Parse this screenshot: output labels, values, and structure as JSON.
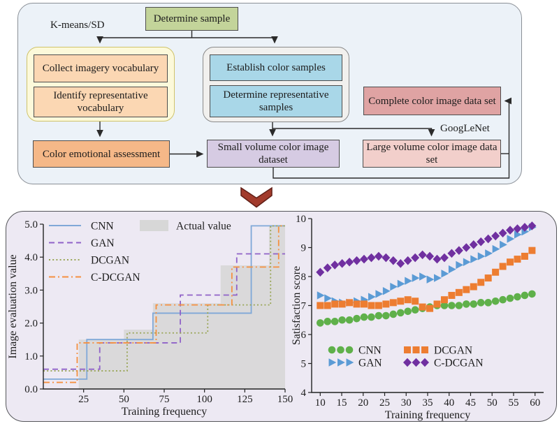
{
  "figure": {
    "flowchart": {
      "kmeans_label": "K-means/SD",
      "googlenet_label": "GoogLeNet",
      "nodes": {
        "determine_sample": "Determine sample",
        "collect_imagery": "Collect imagery vocabulary",
        "identify_representative": "Identify representative vocabulary",
        "establish_color": "Establish color samples",
        "determine_representative": "Determine representative samples",
        "complete_dataset": "Complete color image data set",
        "color_emotional": "Color emotional assessment",
        "small_volume": "Small volume color image dataset",
        "large_volume": "Large volume color image data set"
      },
      "colors": {
        "determine_sample": "#c3d49a",
        "group_yellow": "#fcf9da",
        "group_gray": "#f1f0ee",
        "peach": "#fbd7b3",
        "blue": "#a9d7e8",
        "complete": "#dfa3a3",
        "emotional": "#f5b888",
        "small": "#d6cbe3",
        "large": "#f2cfcb",
        "panel_top": "#ecf2f8",
        "panel_bottom": "#ede9f3",
        "chevron": "#a23b2c"
      }
    }
  },
  "chart_data": [
    {
      "id": "image-evaluation",
      "type": "line",
      "subtype": "step",
      "xlabel": "Training frequency",
      "ylabel": "Image evaluation value",
      "xlim": [
        0,
        150
      ],
      "ylim": [
        0,
        5.0
      ],
      "xticks": [
        25,
        50,
        75,
        100,
        125,
        150
      ],
      "yticks": [
        "0.0",
        "1.0",
        "2.0",
        "3.0",
        "4.0",
        "5.0"
      ],
      "grid": false,
      "legend_position": "inside top-left",
      "actual_area": {
        "label": "Actual value",
        "color": "#d7d7d7",
        "steps": [
          [
            0,
            0
          ],
          [
            22,
            1.5
          ],
          [
            50,
            1.8
          ],
          [
            68,
            2.6
          ],
          [
            110,
            3.75
          ],
          [
            140,
            4.95
          ],
          [
            150,
            4.95
          ]
        ]
      },
      "series": [
        {
          "name": "CNN",
          "color": "#7fa8d8",
          "dash": "solid",
          "steps": [
            [
              0,
              0.3
            ],
            [
              27,
              1.5
            ],
            [
              68,
              2.3
            ],
            [
              129,
              4.95
            ],
            [
              150,
              4.95
            ]
          ]
        },
        {
          "name": "GAN",
          "color": "#8f62c8",
          "dash": "dashed",
          "steps": [
            [
              0,
              0.6
            ],
            [
              35,
              1.4
            ],
            [
              85,
              2.85
            ],
            [
              120,
              4.1
            ],
            [
              150,
              4.1
            ]
          ]
        },
        {
          "name": "DCGAN",
          "color": "#98a554",
          "dash": "dotted",
          "steps": [
            [
              0,
              0.55
            ],
            [
              52,
              1.7
            ],
            [
              102,
              2.55
            ],
            [
              141,
              4.95
            ],
            [
              150,
              4.95
            ]
          ]
        },
        {
          "name": "C-DCGAN",
          "color": "#f59040",
          "dash": "dashdot",
          "steps": [
            [
              0,
              0.2
            ],
            [
              21,
              1.4
            ],
            [
              70,
              2.55
            ],
            [
              117,
              3.7
            ],
            [
              146,
              4.95
            ],
            [
              150,
              4.95
            ]
          ]
        }
      ]
    },
    {
      "id": "satisfaction",
      "type": "scatter",
      "xlabel": "Training frequency",
      "ylabel": "Satisfaction score",
      "xlim": [
        8,
        62
      ],
      "ylim": [
        4,
        10
      ],
      "xticks": [
        10,
        15,
        20,
        25,
        30,
        35,
        40,
        45,
        50,
        55,
        60
      ],
      "yticks": [
        4,
        5,
        6,
        7,
        8,
        9,
        10
      ],
      "grid": false,
      "legend_position": "inside bottom-left",
      "x": [
        10,
        11.7,
        13.4,
        15.1,
        16.8,
        18.5,
        20.2,
        21.9,
        23.6,
        25.3,
        27,
        28.7,
        30.4,
        32.1,
        33.8,
        35.5,
        37.2,
        38.9,
        40.6,
        42.3,
        44,
        45.7,
        47.4,
        49.1,
        50.8,
        52.5,
        54.2,
        55.9,
        57.6,
        59.3
      ],
      "series": [
        {
          "name": "CNN",
          "marker": "circle",
          "color": "#5fb04a",
          "y": [
            6.4,
            6.45,
            6.45,
            6.5,
            6.5,
            6.55,
            6.6,
            6.6,
            6.65,
            6.65,
            6.7,
            6.75,
            6.8,
            6.85,
            6.9,
            6.95,
            7.0,
            7.0,
            7.0,
            7.0,
            7.05,
            7.05,
            7.1,
            7.1,
            7.15,
            7.2,
            7.25,
            7.3,
            7.35,
            7.4
          ]
        },
        {
          "name": "GAN",
          "marker": "triangle",
          "color": "#5b9bd5",
          "y": [
            7.35,
            7.25,
            7.15,
            7.1,
            7.1,
            7.15,
            7.2,
            7.3,
            7.4,
            7.5,
            7.65,
            7.75,
            7.85,
            7.95,
            8.0,
            7.9,
            7.95,
            8.1,
            8.25,
            8.4,
            8.5,
            8.6,
            8.7,
            8.8,
            8.95,
            9.1,
            9.3,
            9.45,
            9.55,
            9.7
          ]
        },
        {
          "name": "DCGAN",
          "marker": "square",
          "color": "#ed7d31",
          "y": [
            7.0,
            7.0,
            7.05,
            7.05,
            7.1,
            7.05,
            7.05,
            7.0,
            7.0,
            7.05,
            7.1,
            7.15,
            7.2,
            7.15,
            6.95,
            6.9,
            7.05,
            7.2,
            7.35,
            7.45,
            7.55,
            7.65,
            7.8,
            7.95,
            8.15,
            8.35,
            8.5,
            8.6,
            8.7,
            8.9
          ]
        },
        {
          "name": "C-DCGAN",
          "marker": "diamond",
          "color": "#7030a0",
          "y": [
            8.15,
            8.3,
            8.4,
            8.45,
            8.5,
            8.55,
            8.6,
            8.65,
            8.7,
            8.65,
            8.55,
            8.45,
            8.55,
            8.65,
            8.75,
            8.7,
            8.6,
            8.65,
            8.8,
            8.9,
            9.0,
            9.1,
            9.2,
            9.3,
            9.4,
            9.5,
            9.6,
            9.65,
            9.7,
            9.75
          ]
        }
      ]
    }
  ]
}
